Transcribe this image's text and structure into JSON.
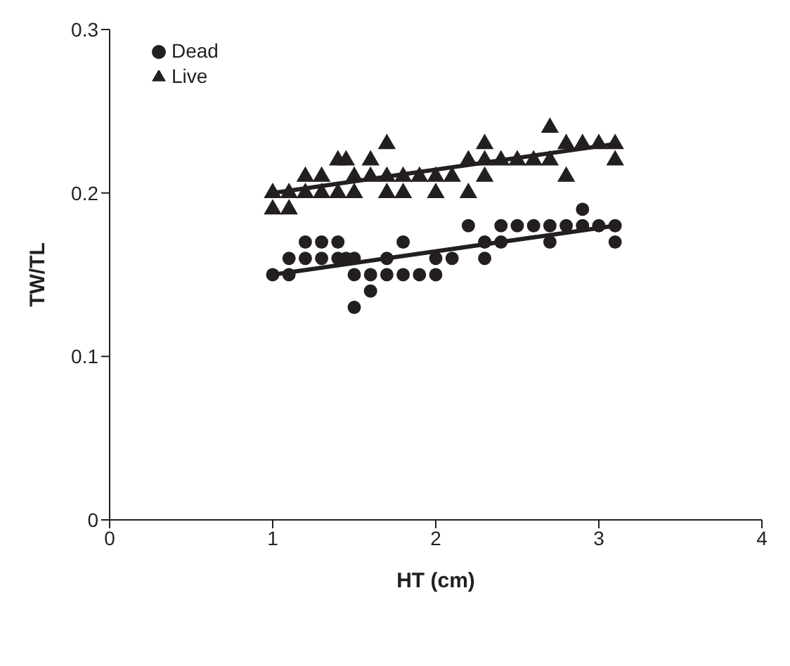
{
  "chart_data": {
    "type": "scatter",
    "xlabel": "HT (cm)",
    "ylabel": "TW/TL",
    "xlim": [
      0,
      4
    ],
    "xticks": [
      0,
      1,
      2,
      3,
      4
    ],
    "ylim": [
      0,
      0.3
    ],
    "yticks": [
      0,
      0.1,
      0.2,
      0.3
    ],
    "grid": false,
    "legend": "top left",
    "series": [
      {
        "name": "Dead",
        "color": "#231f20",
        "marker": "circle",
        "x": [
          1.0,
          1.1,
          1.1,
          1.2,
          1.2,
          1.3,
          1.3,
          1.4,
          1.4,
          1.45,
          1.5,
          1.5,
          1.5,
          1.6,
          1.6,
          1.7,
          1.7,
          1.8,
          1.8,
          1.9,
          2.0,
          2.0,
          2.1,
          2.2,
          2.3,
          2.3,
          2.4,
          2.4,
          2.5,
          2.6,
          2.7,
          2.7,
          2.8,
          2.9,
          2.9,
          3.0,
          3.1,
          3.1
        ],
        "values": [
          0.15,
          0.15,
          0.16,
          0.16,
          0.17,
          0.16,
          0.17,
          0.16,
          0.17,
          0.16,
          0.16,
          0.15,
          0.13,
          0.15,
          0.14,
          0.16,
          0.15,
          0.17,
          0.15,
          0.15,
          0.16,
          0.15,
          0.16,
          0.18,
          0.17,
          0.16,
          0.18,
          0.17,
          0.18,
          0.18,
          0.18,
          0.17,
          0.18,
          0.19,
          0.18,
          0.18,
          0.18,
          0.17
        ]
      },
      {
        "name": "Live",
        "color": "#231f20",
        "marker": "triangle",
        "x": [
          1.0,
          1.0,
          1.1,
          1.1,
          1.2,
          1.2,
          1.3,
          1.3,
          1.4,
          1.4,
          1.45,
          1.5,
          1.5,
          1.6,
          1.6,
          1.7,
          1.7,
          1.7,
          1.8,
          1.8,
          1.9,
          2.0,
          2.0,
          2.1,
          2.2,
          2.2,
          2.3,
          2.3,
          2.3,
          2.4,
          2.5,
          2.6,
          2.7,
          2.7,
          2.8,
          2.8,
          2.9,
          3.0,
          3.1,
          3.1
        ],
        "values": [
          0.2,
          0.19,
          0.2,
          0.19,
          0.21,
          0.2,
          0.21,
          0.2,
          0.22,
          0.2,
          0.22,
          0.21,
          0.2,
          0.22,
          0.21,
          0.23,
          0.21,
          0.2,
          0.21,
          0.2,
          0.21,
          0.21,
          0.2,
          0.21,
          0.22,
          0.2,
          0.23,
          0.22,
          0.21,
          0.22,
          0.22,
          0.22,
          0.24,
          0.22,
          0.23,
          0.21,
          0.23,
          0.23,
          0.23,
          0.22
        ]
      },
      {
        "type": "line",
        "color": "#231f20",
        "x": [
          1.0,
          3.1
        ],
        "values": [
          0.15,
          0.18
        ]
      },
      {
        "type": "line",
        "color": "#231f20",
        "x": [
          1.0,
          3.1
        ],
        "values": [
          0.2,
          0.23
        ]
      }
    ]
  }
}
